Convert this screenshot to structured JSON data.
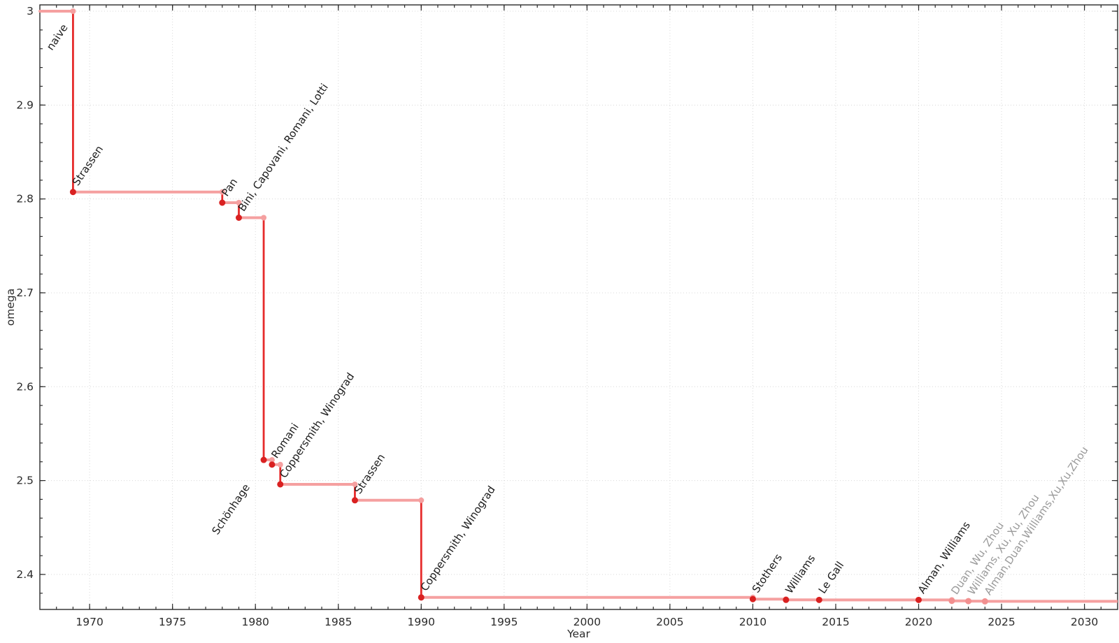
{
  "page": {
    "background": "#ffffff",
    "description": "Step chart of the best known matrix multiplication exponent (omega) over time"
  },
  "chart_data": {
    "type": "line",
    "subtype": "step-post",
    "title": "",
    "xlabel": "Year",
    "ylabel": "omega",
    "xlim": [
      1967,
      2032
    ],
    "ylim": [
      2.3627,
      3.0067
    ],
    "x_major_ticks": [
      1970,
      1975,
      1980,
      1985,
      1990,
      1995,
      2000,
      2005,
      2010,
      2015,
      2020,
      2025,
      2030
    ],
    "x_minor_step": 1,
    "y_major_ticks": [
      2.4,
      2.5,
      2.6,
      2.7,
      2.8,
      2.9,
      3.0
    ],
    "y_tick_labels": [
      "2.4",
      "2.5",
      "2.6",
      "2.7",
      "2.8",
      "2.9",
      "3"
    ],
    "y_minor_step": 0.02,
    "grid": {
      "major": true,
      "minor": false,
      "style": "dotted",
      "color": "#d8d8d8"
    },
    "legend": null,
    "colors": {
      "step_line": "#e62b2b",
      "plateau_line": "#f5a0a0",
      "point": "#d92121",
      "plateau_point": "#f5a0a0",
      "muted_point": "#f29090",
      "label": "#1c1c1c",
      "muted_label": "#9a9a9a",
      "axis": "#2b2b2b"
    },
    "baseline": {
      "omega": 3.0,
      "label": "naive",
      "label_anchor_year": 1969,
      "label_offset": [
        -30,
        57
      ]
    },
    "discoveries": [
      {
        "year": 1969,
        "omega": 2.8074,
        "label": "Strassen"
      },
      {
        "year": 1978,
        "omega": 2.796,
        "label": "Pan"
      },
      {
        "year": 1979,
        "omega": 2.78,
        "label": "Bini, Capovani, Romani, Lotti"
      },
      {
        "year": 1980.5,
        "omega": 2.522,
        "label": "Schönhage",
        "label_offset": [
          -66,
          108
        ]
      },
      {
        "year": 1981,
        "omega": 2.517,
        "label": "Romani"
      },
      {
        "year": 1981.5,
        "omega": 2.496,
        "label": "Coppersmith, Winograd"
      },
      {
        "year": 1986,
        "omega": 2.479,
        "label": "Strassen"
      },
      {
        "year": 1990,
        "omega": 2.3755,
        "label": "Coppersmith, Winograd"
      },
      {
        "year": 2010,
        "omega": 2.3737,
        "label": "Stothers"
      },
      {
        "year": 2012,
        "omega": 2.3729,
        "label": "Williams"
      },
      {
        "year": 2014,
        "omega": 2.3728639,
        "label": "Le Gall"
      },
      {
        "year": 2020,
        "omega": 2.3728596,
        "label": "Alman, Williams"
      },
      {
        "year": 2022,
        "omega": 2.371866,
        "label": "Duan, Wu, Zhou",
        "muted": true
      },
      {
        "year": 2023,
        "omega": 2.371552,
        "label": "Williams, Xu, Xu, Zhou",
        "muted": true
      },
      {
        "year": 2024,
        "omega": 2.371339,
        "label": "Alman,Duan,Williams,Xu,Xu,Zhou",
        "muted": true
      }
    ]
  }
}
